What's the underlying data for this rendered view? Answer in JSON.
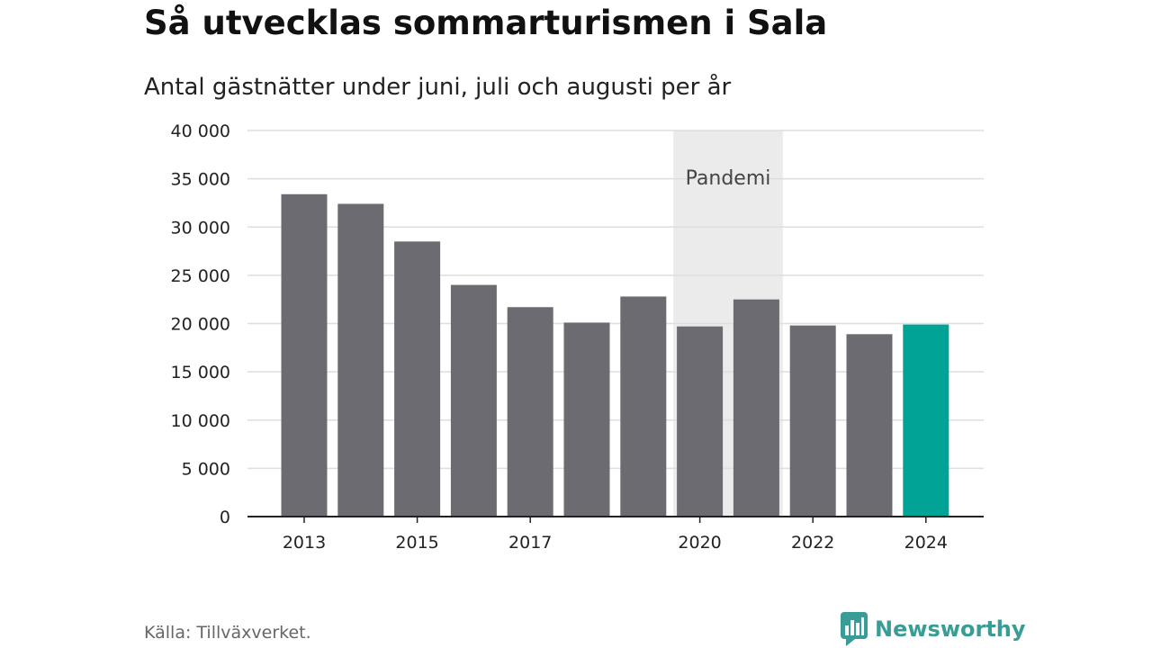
{
  "chart_data": {
    "type": "bar",
    "title": "Så utvecklas sommarturismen i Sala",
    "subtitle": "Antal gästnätter under juni, juli och augusti per år",
    "categories": [
      "2013",
      "2014",
      "2015",
      "2016",
      "2017",
      "2018",
      "2019",
      "2020",
      "2021",
      "2022",
      "2023",
      "2024"
    ],
    "values": [
      33400,
      32400,
      28500,
      24000,
      21700,
      20100,
      22800,
      19700,
      22500,
      19800,
      18900,
      19900
    ],
    "x_tick_labels": [
      "2013",
      "",
      "2015",
      "",
      "2017",
      "",
      "",
      "2020",
      "",
      "2022",
      "",
      "2024"
    ],
    "y_ticks": [
      0,
      5000,
      10000,
      15000,
      20000,
      25000,
      30000,
      35000,
      40000
    ],
    "y_tick_labels": [
      "0",
      "5 000",
      "10 000",
      "15 000",
      "20 000",
      "25 000",
      "30 000",
      "35 000",
      "40 000"
    ],
    "ylim": [
      0,
      40000
    ],
    "grid": true,
    "highlight_category": "2024",
    "annotation": {
      "label": "Pandemi",
      "from": "2020",
      "to": "2021"
    },
    "colors": {
      "bar": "#6c6b71",
      "highlight": "#00a396",
      "annotation_band": "#ebebeb",
      "grid": "#dedede",
      "axis": "#222222"
    }
  },
  "footer": {
    "source": "Källa: Tillväxverket.",
    "brand": "Newsworthy",
    "brand_icon": "newsworthy-logo-icon",
    "brand_color": "#3a9c96"
  }
}
